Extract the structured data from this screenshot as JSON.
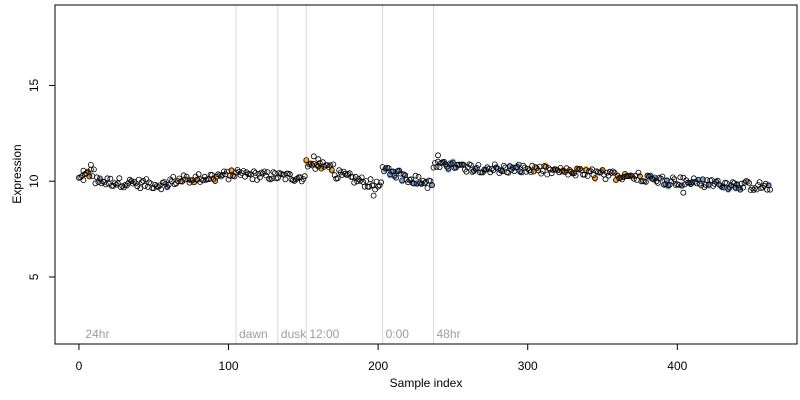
{
  "chart_data": {
    "type": "scatter",
    "title": "",
    "xlabel": "Sample index",
    "ylabel": "Expression",
    "xlim": [
      -16,
      480
    ],
    "ylim": [
      1.5,
      19.2
    ],
    "x_ticks": [
      0,
      100,
      200,
      300,
      400
    ],
    "y_ticks": [
      5,
      10,
      15
    ],
    "grid": false,
    "legend": "none",
    "colors": {
      "point_stroke": "#000000",
      "point_fill_default": "#ffffff",
      "point_fill_orange": "#f2a33a",
      "point_fill_blue": "#7aa3d9",
      "vline": "#d9d9d9",
      "note_text": "#9e9e9e"
    },
    "vertical_lines": [
      {
        "x": 105,
        "label": "dawn"
      },
      {
        "x": 133,
        "label": "dusk"
      },
      {
        "x": 152,
        "label": "12:00"
      },
      {
        "x": 203,
        "label": "0:00"
      },
      {
        "x": 237,
        "label": "48hr"
      }
    ],
    "start_label": {
      "x": 3,
      "label": "24hr"
    },
    "segments": [
      {
        "x0": 0,
        "x1": 10,
        "y0": 10.1,
        "y1": 10.5,
        "highlight": "orange"
      },
      {
        "x0": 11,
        "x1": 60,
        "y0": 10.0,
        "y1": 9.8,
        "highlight": "blue"
      },
      {
        "x0": 61,
        "x1": 104,
        "y0": 10.0,
        "y1": 10.35,
        "highlight": "orange"
      },
      {
        "x0": 105,
        "x1": 151,
        "y0": 10.35,
        "y1": 10.2,
        "highlight": "none"
      },
      {
        "x0": 152,
        "x1": 170,
        "y0": 10.9,
        "y1": 10.7,
        "highlight": "orange"
      },
      {
        "x0": 171,
        "x1": 202,
        "y0": 10.4,
        "y1": 9.7,
        "highlight": "none"
      },
      {
        "x0": 203,
        "x1": 236,
        "y0": 10.6,
        "y1": 9.8,
        "highlight": "blue"
      },
      {
        "x0": 237,
        "x1": 300,
        "y0": 10.8,
        "y1": 10.6,
        "highlight": "blue"
      },
      {
        "x0": 301,
        "x1": 380,
        "y0": 10.6,
        "y1": 10.2,
        "highlight": "orange"
      },
      {
        "x0": 381,
        "x1": 462,
        "y0": 10.1,
        "y1": 9.7,
        "highlight": "blue"
      }
    ],
    "notable_points": [
      {
        "x": 3,
        "y": 10.55
      },
      {
        "x": 8,
        "y": 10.85
      },
      {
        "x": 157,
        "y": 11.3
      },
      {
        "x": 160,
        "y": 11.15
      },
      {
        "x": 197,
        "y": 9.25
      },
      {
        "x": 240,
        "y": 11.35
      },
      {
        "x": 404,
        "y": 9.4
      }
    ]
  }
}
